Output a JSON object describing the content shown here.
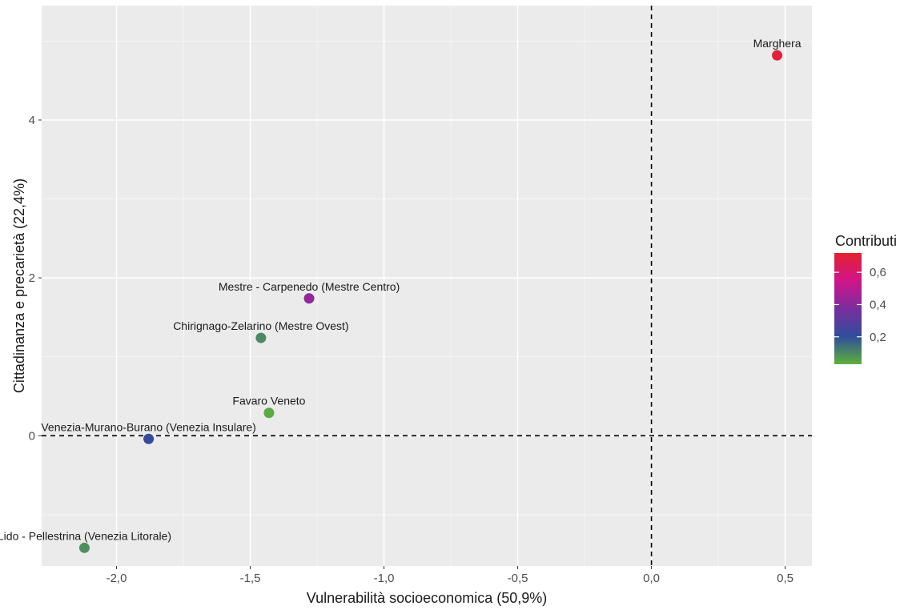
{
  "chart_data": {
    "type": "scatter",
    "title": "",
    "xlabel": "Vulnerabilità socioeconomica (50,9%)",
    "ylabel": "Cittadinanza e precarietà (22,4%)",
    "xlim": [
      -2.28,
      0.6
    ],
    "ylim": [
      -1.65,
      5.45
    ],
    "x_ticks": [
      {
        "value": -2.0,
        "label": "-2,0"
      },
      {
        "value": -1.5,
        "label": "-1,5"
      },
      {
        "value": -1.0,
        "label": "-1,0"
      },
      {
        "value": -0.5,
        "label": "-0,5"
      },
      {
        "value": 0.0,
        "label": "0,0"
      },
      {
        "value": 0.5,
        "label": "0,5"
      }
    ],
    "y_ticks": [
      {
        "value": 0,
        "label": "0"
      },
      {
        "value": 2,
        "label": "2"
      },
      {
        "value": 4,
        "label": "4"
      }
    ],
    "grid": true,
    "reference_lines": {
      "x": 0,
      "y": 0,
      "style": "dashed"
    },
    "points": [
      {
        "label": "Marghera",
        "x": 0.47,
        "y": 4.82,
        "contribution": 0.7
      },
      {
        "label": "Mestre - Carpenedo (Mestre Centro)",
        "x": -1.28,
        "y": 1.74,
        "contribution": 0.42
      },
      {
        "label": "Chirignago-Zelarino (Mestre Ovest)",
        "x": -1.46,
        "y": 1.24,
        "contribution": 0.1
      },
      {
        "label": "Favaro Veneto",
        "x": -1.43,
        "y": 0.29,
        "contribution": 0.04
      },
      {
        "label": "Venezia-Murano-Burano (Venezia Insulare)",
        "x": -1.88,
        "y": -0.04,
        "contribution": 0.22
      },
      {
        "label": "Lido - Pellestrina (Venezia Litorale)",
        "x": -2.12,
        "y": -1.42,
        "contribution": 0.09
      }
    ],
    "legend": {
      "title": "Contributi",
      "position": "right",
      "min": 0.03,
      "max": 0.72,
      "ticks": [
        {
          "value": 0.6,
          "label": "0,6"
        },
        {
          "value": 0.4,
          "label": "0,4"
        },
        {
          "value": 0.2,
          "label": "0,2"
        }
      ],
      "colors": [
        "#5cb23c",
        "#2f4d9c",
        "#7a2e9e",
        "#d1148a",
        "#e3222f"
      ]
    },
    "colors": {
      "panel_background": "#ebebeb",
      "grid": "#ffffff"
    }
  }
}
